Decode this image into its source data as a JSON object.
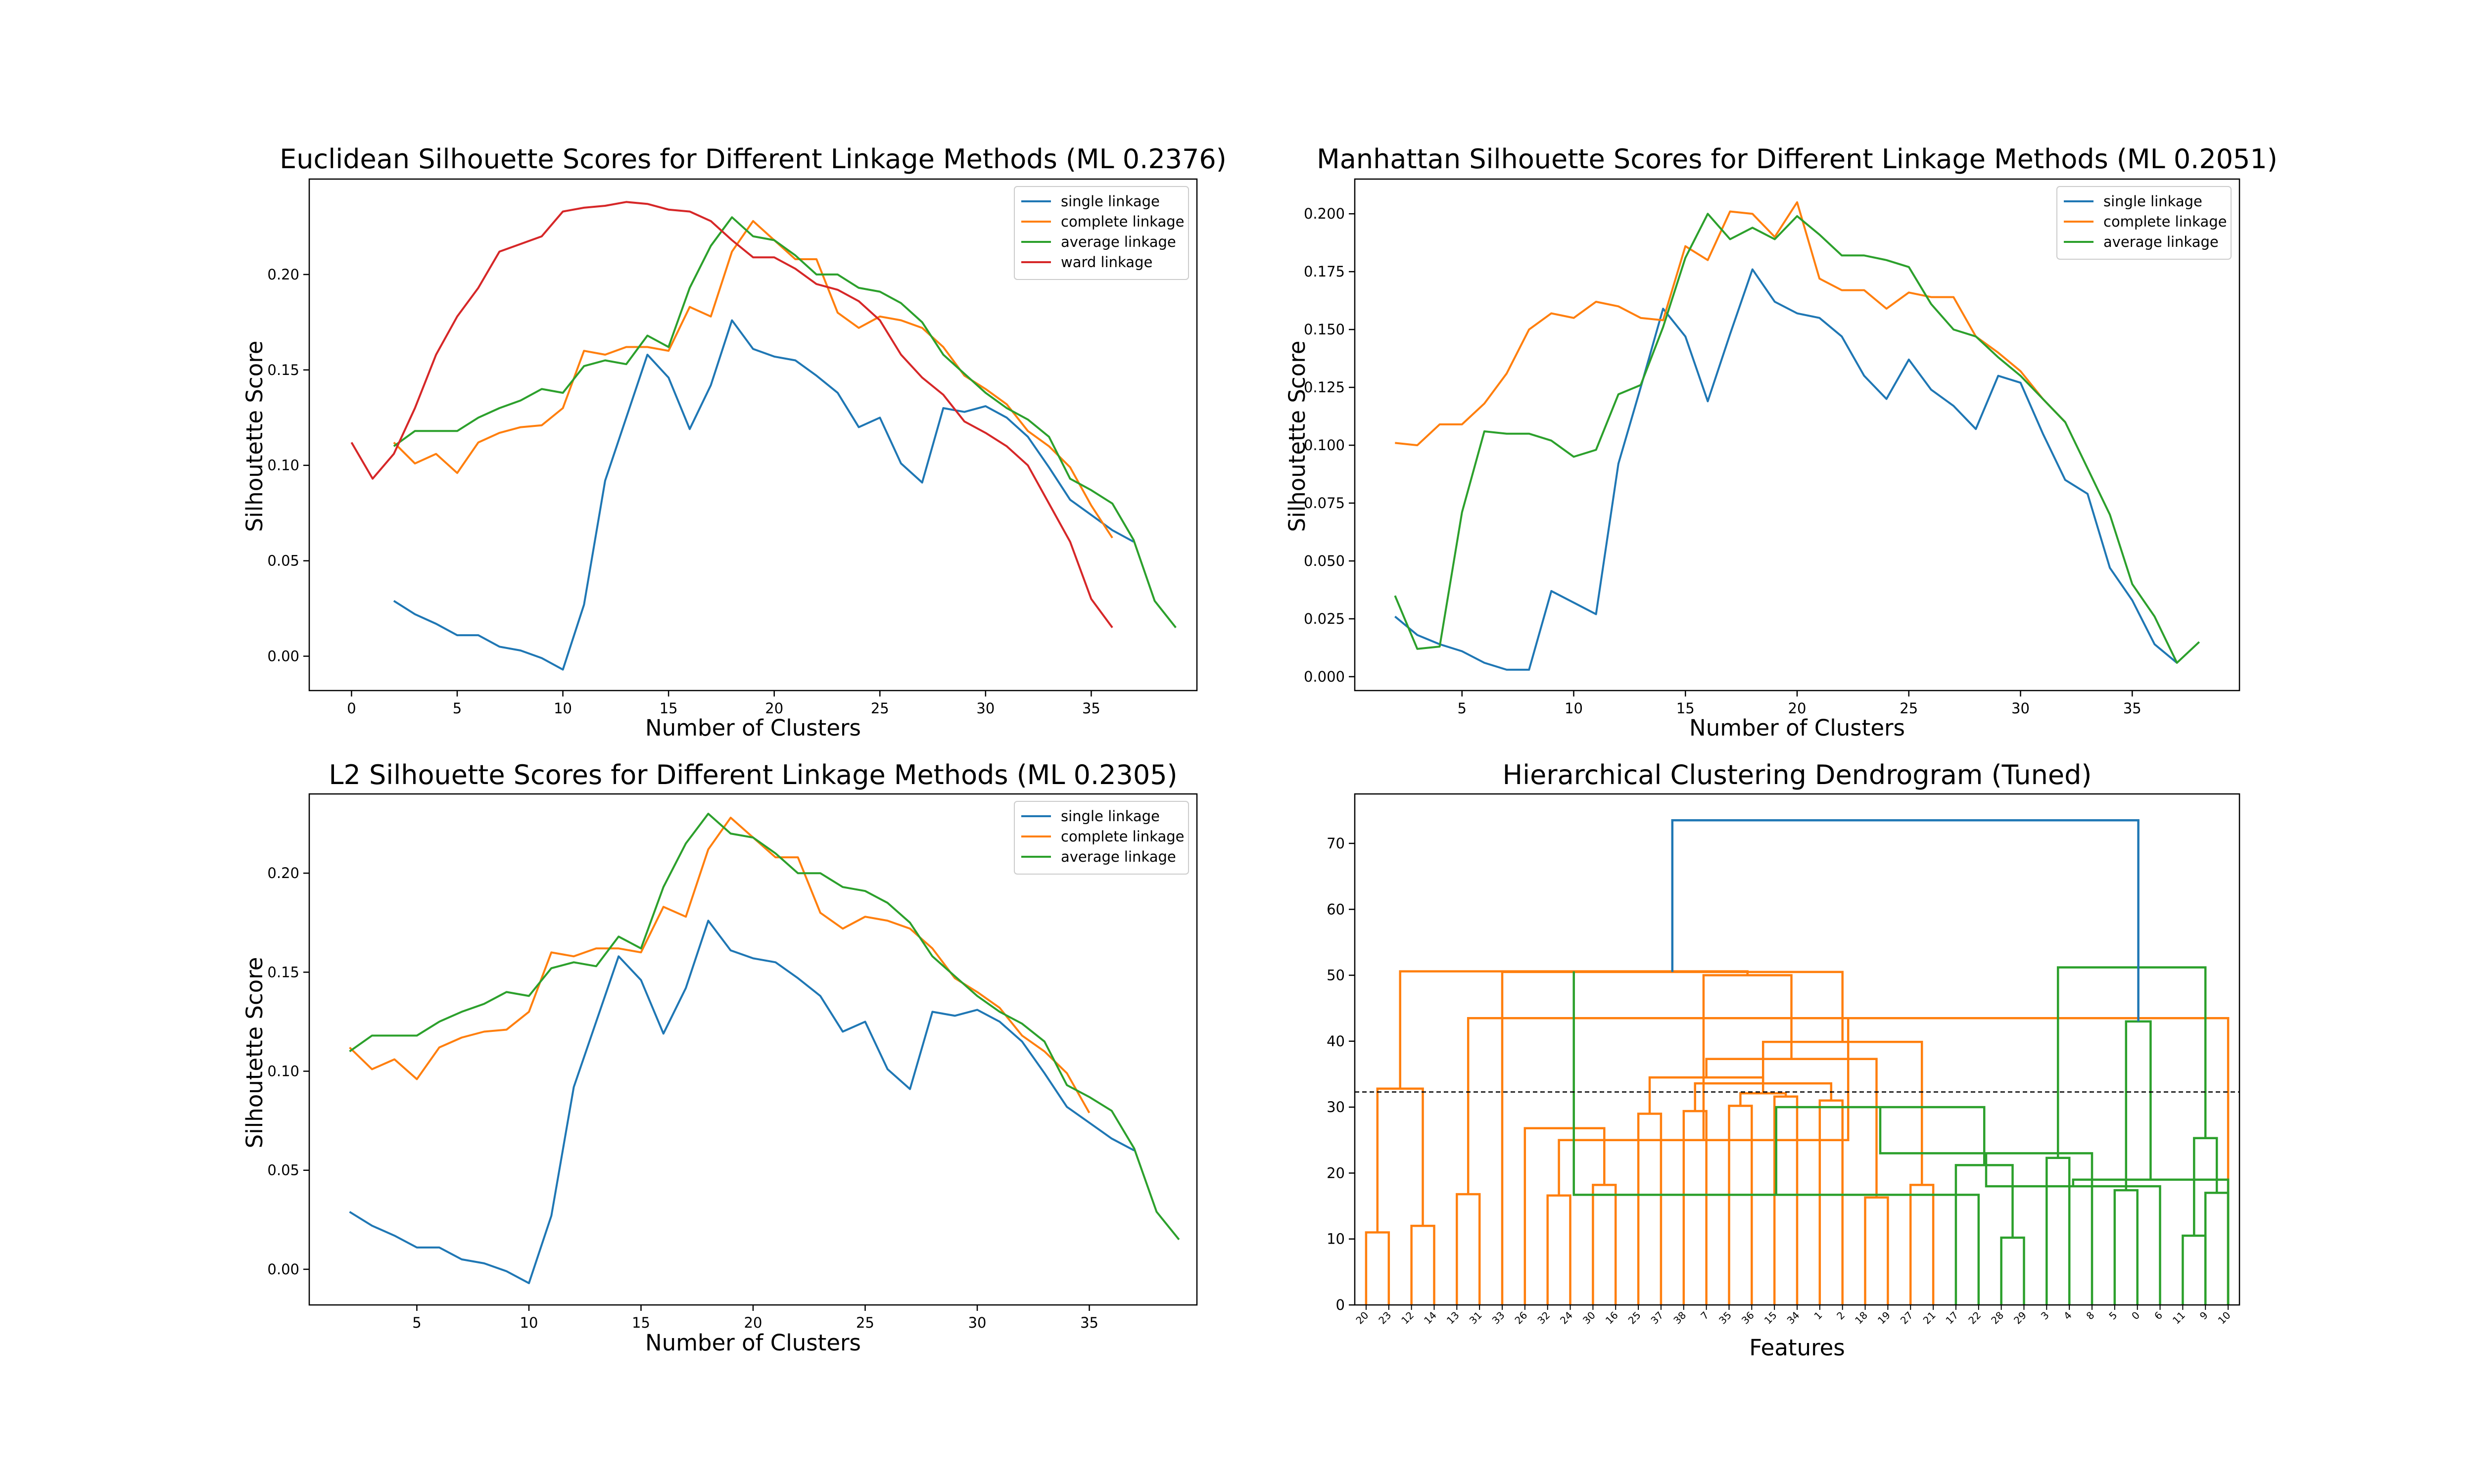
{
  "chart_data": [
    {
      "type": "line",
      "title": "Euclidean Silhouette Scores for Different Linkage Methods (ML 0.2376)",
      "xlabel": "Number of Clusters",
      "ylabel": "Silhoutette Score",
      "xlim": [
        -2,
        40
      ],
      "ylim": [
        -0.018,
        0.25
      ],
      "xticks": [
        0,
        5,
        10,
        15,
        20,
        25,
        30,
        35
      ],
      "yticks": [
        0.0,
        0.05,
        0.1,
        0.15,
        0.2
      ],
      "ytick_labels": [
        "0.00",
        "0.05",
        "0.10",
        "0.15",
        "0.20"
      ],
      "legend_position": "top-right",
      "grid": false,
      "series": [
        {
          "name": "single linkage",
          "color": "#1f77b4",
          "x_start": 2,
          "values": [
            0.029,
            0.022,
            0.017,
            0.011,
            0.011,
            0.005,
            0.003,
            -0.001,
            -0.007,
            0.027,
            0.092,
            0.125,
            0.158,
            0.146,
            0.119,
            0.142,
            0.176,
            0.161,
            0.157,
            0.155,
            0.147,
            0.138,
            0.12,
            0.125,
            0.101,
            0.091,
            0.13,
            0.128,
            0.131,
            0.125,
            0.115,
            0.099,
            0.082,
            0.074,
            0.066,
            0.06
          ]
        },
        {
          "name": "complete linkage",
          "color": "#ff7f0e",
          "x_start": 2,
          "values": [
            0.112,
            0.101,
            0.106,
            0.096,
            0.112,
            0.117,
            0.12,
            0.121,
            0.13,
            0.16,
            0.158,
            0.162,
            0.162,
            0.16,
            0.183,
            0.178,
            0.212,
            0.228,
            0.218,
            0.208,
            0.208,
            0.18,
            0.172,
            0.178,
            0.176,
            0.172,
            0.162,
            0.147,
            0.14,
            0.132,
            0.118,
            0.11,
            0.099,
            0.079,
            0.062
          ]
        },
        {
          "name": "average linkage",
          "color": "#2ca02c",
          "x_start": 2,
          "values": [
            0.11,
            0.118,
            0.118,
            0.118,
            0.125,
            0.13,
            0.134,
            0.14,
            0.138,
            0.152,
            0.155,
            0.153,
            0.168,
            0.162,
            0.193,
            0.215,
            0.23,
            0.22,
            0.218,
            0.21,
            0.2,
            0.2,
            0.193,
            0.191,
            0.185,
            0.175,
            0.158,
            0.148,
            0.138,
            0.13,
            0.124,
            0.115,
            0.093,
            0.087,
            0.08,
            0.061,
            0.029,
            0.015
          ]
        },
        {
          "name": "ward linkage",
          "color": "#d62728",
          "x_start": 0,
          "values": [
            0.112,
            0.093,
            0.106,
            0.13,
            0.158,
            0.178,
            0.193,
            0.212,
            0.216,
            0.22,
            0.233,
            0.235,
            0.236,
            0.238,
            0.237,
            0.234,
            0.233,
            0.228,
            0.218,
            0.209,
            0.209,
            0.203,
            0.195,
            0.192,
            0.186,
            0.176,
            0.158,
            0.146,
            0.137,
            0.123,
            0.117,
            0.11,
            0.1,
            0.08,
            0.06,
            0.03,
            0.015
          ]
        }
      ]
    },
    {
      "type": "line",
      "title": "Manhattan Silhouette Scores for Different Linkage Methods (ML 0.2051)",
      "xlabel": "Number of Clusters",
      "ylabel": "Silhoutette Score",
      "xlim": [
        0.2,
        39.8
      ],
      "ylim": [
        -0.006,
        0.215
      ],
      "xticks": [
        5,
        10,
        15,
        20,
        25,
        30,
        35
      ],
      "yticks": [
        0.0,
        0.025,
        0.05,
        0.075,
        0.1,
        0.125,
        0.15,
        0.175,
        0.2
      ],
      "ytick_labels": [
        "0.000",
        "0.025",
        "0.050",
        "0.075",
        "0.100",
        "0.125",
        "0.150",
        "0.175",
        "0.200"
      ],
      "legend_position": "top-right",
      "grid": false,
      "series": [
        {
          "name": "single linkage",
          "color": "#1f77b4",
          "x_start": 2,
          "values": [
            0.026,
            0.018,
            0.014,
            0.011,
            0.006,
            0.003,
            0.003,
            0.037,
            0.032,
            0.027,
            0.092,
            0.125,
            0.159,
            0.147,
            0.119,
            0.148,
            0.176,
            0.162,
            0.157,
            0.155,
            0.147,
            0.13,
            0.12,
            0.137,
            0.124,
            0.117,
            0.107,
            0.13,
            0.127,
            0.105,
            0.085,
            0.079,
            0.047,
            0.033,
            0.014,
            0.006
          ]
        },
        {
          "name": "complete linkage",
          "color": "#ff7f0e",
          "x_start": 2,
          "values": [
            0.101,
            0.1,
            0.109,
            0.109,
            0.118,
            0.131,
            0.15,
            0.157,
            0.155,
            0.162,
            0.16,
            0.155,
            0.154,
            0.186,
            0.18,
            0.201,
            0.2,
            0.19,
            0.205,
            0.172,
            0.167,
            0.167,
            0.159,
            0.166,
            0.164,
            0.164,
            0.147,
            0.14,
            0.132,
            0.12,
            0.11
          ]
        },
        {
          "name": "average linkage",
          "color": "#2ca02c",
          "x_start": 2,
          "values": [
            0.035,
            0.012,
            0.013,
            0.071,
            0.106,
            0.105,
            0.105,
            0.102,
            0.095,
            0.098,
            0.122,
            0.126,
            0.151,
            0.181,
            0.2,
            0.189,
            0.194,
            0.189,
            0.199,
            0.191,
            0.182,
            0.182,
            0.18,
            0.177,
            0.161,
            0.15,
            0.147,
            0.138,
            0.13,
            0.12,
            0.11,
            0.09,
            0.07,
            0.04,
            0.026,
            0.006,
            0.015
          ]
        }
      ]
    },
    {
      "type": "line",
      "title": "L2 Silhouette Scores for Different Linkage Methods (ML 0.2305)",
      "xlabel": "Number of Clusters",
      "ylabel": "Silhoutette Score",
      "xlim": [
        0.2,
        39.8
      ],
      "ylim": [
        -0.018,
        0.24
      ],
      "xticks": [
        5,
        10,
        15,
        20,
        25,
        30,
        35
      ],
      "yticks": [
        0.0,
        0.05,
        0.1,
        0.15,
        0.2
      ],
      "ytick_labels": [
        "0.00",
        "0.05",
        "0.10",
        "0.15",
        "0.20"
      ],
      "legend_position": "top-right",
      "grid": false,
      "series": [
        {
          "name": "single linkage",
          "color": "#1f77b4",
          "x_start": 2,
          "values": [
            0.029,
            0.022,
            0.017,
            0.011,
            0.011,
            0.005,
            0.003,
            -0.001,
            -0.007,
            0.027,
            0.092,
            0.125,
            0.158,
            0.146,
            0.119,
            0.142,
            0.176,
            0.161,
            0.157,
            0.155,
            0.147,
            0.138,
            0.12,
            0.125,
            0.101,
            0.091,
            0.13,
            0.128,
            0.131,
            0.125,
            0.115,
            0.099,
            0.082,
            0.074,
            0.066,
            0.06
          ]
        },
        {
          "name": "complete linkage",
          "color": "#ff7f0e",
          "x_start": 2,
          "values": [
            0.112,
            0.101,
            0.106,
            0.096,
            0.112,
            0.117,
            0.12,
            0.121,
            0.13,
            0.16,
            0.158,
            0.162,
            0.162,
            0.16,
            0.183,
            0.178,
            0.212,
            0.228,
            0.218,
            0.208,
            0.208,
            0.18,
            0.172,
            0.178,
            0.176,
            0.172,
            0.162,
            0.147,
            0.14,
            0.132,
            0.118,
            0.11,
            0.099,
            0.079
          ]
        },
        {
          "name": "average linkage",
          "color": "#2ca02c",
          "x_start": 2,
          "values": [
            0.11,
            0.118,
            0.118,
            0.118,
            0.125,
            0.13,
            0.134,
            0.14,
            0.138,
            0.152,
            0.155,
            0.153,
            0.168,
            0.162,
            0.193,
            0.215,
            0.23,
            0.22,
            0.218,
            0.21,
            0.2,
            0.2,
            0.193,
            0.191,
            0.185,
            0.175,
            0.158,
            0.148,
            0.138,
            0.13,
            0.124,
            0.115,
            0.093,
            0.087,
            0.08,
            0.061,
            0.029,
            0.015
          ]
        }
      ]
    },
    {
      "type": "dendrogram",
      "title": "Hierarchical Clustering Dendrogram (Tuned)",
      "xlabel": "Features",
      "ylim": [
        0,
        77.5
      ],
      "yticks": [
        0,
        10,
        20,
        30,
        40,
        50,
        60,
        70
      ],
      "threshold": 32.3,
      "colors": {
        "orange": "#ff7f0e",
        "green": "#2ca02c",
        "blue": "#1f77b4",
        "threshold": "#000000"
      },
      "leaves": [
        "20",
        "23",
        "12",
        "14",
        "13",
        "31",
        "33",
        "26",
        "32",
        "24",
        "30",
        "16",
        "25",
        "37",
        "38",
        "7",
        "35",
        "36",
        "15",
        "34",
        "1",
        "2",
        "18",
        "19",
        "27",
        "21",
        "17",
        "22",
        "28",
        "29",
        "3",
        "4",
        "8",
        "5",
        "0",
        "6",
        "11",
        "9",
        "10"
      ],
      "links": [
        {
          "left": 0,
          "right": 1,
          "height": 11.0,
          "color": "orange"
        },
        {
          "left": 2,
          "right": 3,
          "height": 12.0,
          "color": "orange"
        },
        {
          "left": 4,
          "right": 5,
          "height": 16.8,
          "color": "orange"
        },
        {
          "left": 39,
          "right": 40,
          "height": 32.8,
          "color": "orange"
        },
        {
          "left": 38,
          "right": 41,
          "height": 43.5,
          "color": "orange"
        },
        {
          "left": 8,
          "right": 9,
          "height": 16.6,
          "color": "orange"
        },
        {
          "left": 10,
          "right": 11,
          "height": 18.2,
          "color": "orange"
        },
        {
          "left": 43,
          "right": 44,
          "height": 25.0,
          "color": "orange"
        },
        {
          "left": 7,
          "right": 45,
          "height": 26.8,
          "color": "orange"
        },
        {
          "left": 12,
          "right": 13,
          "height": 29.0,
          "color": "orange"
        },
        {
          "left": 14,
          "right": 15,
          "height": 29.4,
          "color": "orange"
        },
        {
          "left": 16,
          "right": 17,
          "height": 30.2,
          "color": "orange"
        },
        {
          "left": 18,
          "right": 19,
          "height": 31.6,
          "color": "orange"
        },
        {
          "left": 20,
          "right": 21,
          "height": 31.0,
          "color": "orange"
        },
        {
          "left": 50,
          "right": 51,
          "height": 32.1,
          "color": "orange"
        },
        {
          "left": 49,
          "right": 52,
          "height": 33.6,
          "color": "orange"
        },
        {
          "left": 48,
          "right": 53,
          "height": 34.5,
          "color": "orange"
        },
        {
          "left": 22,
          "right": 23,
          "height": 16.3,
          "color": "orange"
        },
        {
          "left": 24,
          "right": 25,
          "height": 18.2,
          "color": "orange"
        },
        {
          "left": 55,
          "right": 56,
          "height": 37.3,
          "color": "orange"
        },
        {
          "left": 54,
          "right": 57,
          "height": 39.9,
          "color": "orange"
        },
        {
          "left": 46,
          "right": 58,
          "height": 50.0,
          "color": "orange"
        },
        {
          "left": 6,
          "right": 59,
          "height": 50.5,
          "color": "orange"
        },
        {
          "left": 42,
          "right": 60,
          "height": 50.6,
          "color": "orange"
        },
        {
          "left": 28,
          "right": 29,
          "height": 10.2,
          "color": "green"
        },
        {
          "left": 27,
          "right": 62,
          "height": 16.7,
          "color": "green"
        },
        {
          "left": 26,
          "right": 63,
          "height": 21.2,
          "color": "green"
        },
        {
          "left": 30,
          "right": 31,
          "height": 22.3,
          "color": "green"
        },
        {
          "left": 64,
          "right": 65,
          "height": 30.0,
          "color": "green"
        },
        {
          "left": 33,
          "right": 34,
          "height": 17.4,
          "color": "green"
        },
        {
          "left": 32,
          "right": 67,
          "height": 23.0,
          "color": "green"
        },
        {
          "left": 36,
          "right": 37,
          "height": 10.5,
          "color": "green"
        },
        {
          "left": 35,
          "right": 69,
          "height": 18.0,
          "color": "green"
        },
        {
          "left": 39,
          "right": 40,
          "height": 17.0,
          "color": "green",
          "leaf_pair": true
        },
        {
          "left": 38,
          "right": 71,
          "height": 19.0,
          "color": "green"
        },
        {
          "left": 70,
          "right": 72,
          "height": 25.3,
          "color": "green"
        },
        {
          "left": 68,
          "right": 73,
          "height": 43.0,
          "color": "green"
        },
        {
          "left": 66,
          "right": 74,
          "height": 51.2,
          "color": "green"
        },
        {
          "left": 61,
          "right": 75,
          "height": 73.5,
          "color": "blue"
        }
      ]
    }
  ]
}
